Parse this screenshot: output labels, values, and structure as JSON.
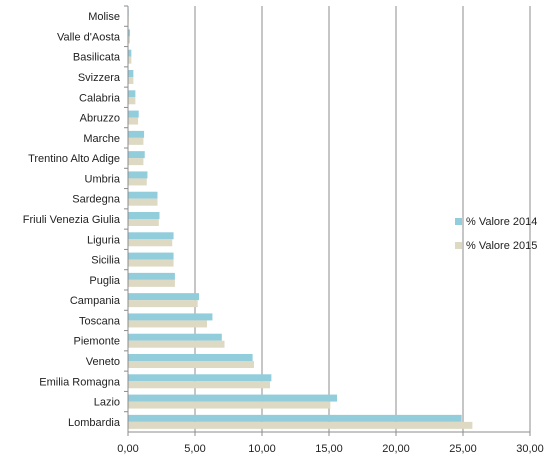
{
  "chart_data": {
    "type": "bar",
    "orientation": "horizontal",
    "categories": [
      "Molise",
      "Valle d'Aosta",
      "Basilicata",
      "Svizzera",
      "Calabria",
      "Abruzzo",
      "Marche",
      "Trentino Alto Adige",
      "Umbria",
      "Sardegna",
      "Friuli Venezia Giulia",
      "Liguria",
      "Sicilia",
      "Puglia",
      "Campania",
      "Toscana",
      "Piemonte",
      "Veneto",
      "Emilia Romagna",
      "Lazio",
      "Lombardia"
    ],
    "series": [
      {
        "name": "% Valore 2014",
        "color": "#92cddc",
        "values": [
          0.05,
          0.15,
          0.25,
          0.4,
          0.55,
          0.8,
          1.2,
          1.25,
          1.45,
          2.2,
          2.35,
          3.4,
          3.4,
          3.5,
          5.3,
          6.3,
          7.0,
          9.3,
          10.7,
          15.6,
          24.9
        ]
      },
      {
        "name": "% Valore 2015",
        "color": "#ddd9c3",
        "values": [
          0.05,
          0.15,
          0.25,
          0.4,
          0.55,
          0.75,
          1.15,
          1.15,
          1.4,
          2.2,
          2.3,
          3.3,
          3.4,
          3.5,
          5.2,
          5.9,
          7.2,
          9.4,
          10.6,
          15.1,
          25.7
        ]
      }
    ],
    "xlim": [
      0,
      30
    ],
    "xticks": [
      "0,00",
      "5,00",
      "10,00",
      "15,00",
      "20,00",
      "25,00",
      "30,00"
    ],
    "xtick_values": [
      0,
      5,
      10,
      15,
      20,
      25,
      30
    ],
    "grid": "vertical",
    "legend": "right"
  }
}
